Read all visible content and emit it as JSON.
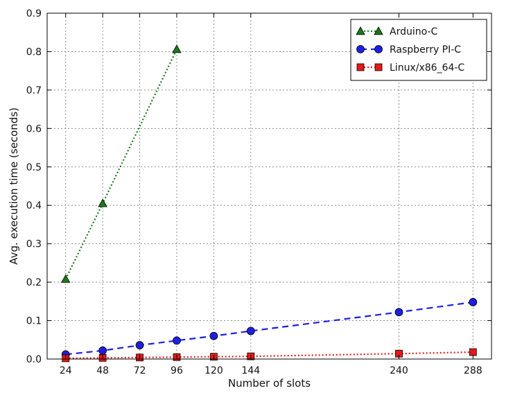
{
  "chart_data": {
    "type": "line",
    "xlabel": "Number of slots",
    "ylabel": "Avg. execution time (seconds)",
    "xlim": [
      12,
      300
    ],
    "ylim": [
      0,
      0.9
    ],
    "xticks": [
      24,
      48,
      72,
      96,
      120,
      144,
      240,
      288
    ],
    "xtick_labels": [
      "24",
      "48",
      "72",
      "96",
      "120",
      "144",
      "240",
      "288"
    ],
    "yticks": [
      0.0,
      0.1,
      0.2,
      0.3,
      0.4,
      0.5,
      0.6,
      0.7,
      0.8,
      0.9
    ],
    "ytick_labels": [
      "0.0",
      "0.1",
      "0.2",
      "0.3",
      "0.4",
      "0.5",
      "0.6",
      "0.7",
      "0.8",
      "0.9"
    ],
    "grid": true,
    "legend_position": "top-right",
    "series": [
      {
        "name": "Arduino-C",
        "color": "#1a7a1a",
        "marker": "triangle",
        "linestyle": "dotted",
        "x": [
          24,
          48,
          96
        ],
        "y": [
          0.208,
          0.405,
          0.806
        ]
      },
      {
        "name": "Raspberry PI-C",
        "color": "#1f1fe0",
        "marker": "circle",
        "linestyle": "dashed",
        "x": [
          24,
          48,
          72,
          96,
          120,
          144,
          240,
          288
        ],
        "y": [
          0.012,
          0.022,
          0.036,
          0.048,
          0.06,
          0.073,
          0.122,
          0.148
        ]
      },
      {
        "name": "Linux/x86_64-C",
        "color": "#e31a1a",
        "marker": "square",
        "linestyle": "dotted",
        "x": [
          24,
          48,
          72,
          96,
          120,
          144,
          240,
          288
        ],
        "y": [
          0.002,
          0.003,
          0.004,
          0.005,
          0.006,
          0.007,
          0.014,
          0.018
        ]
      }
    ]
  }
}
